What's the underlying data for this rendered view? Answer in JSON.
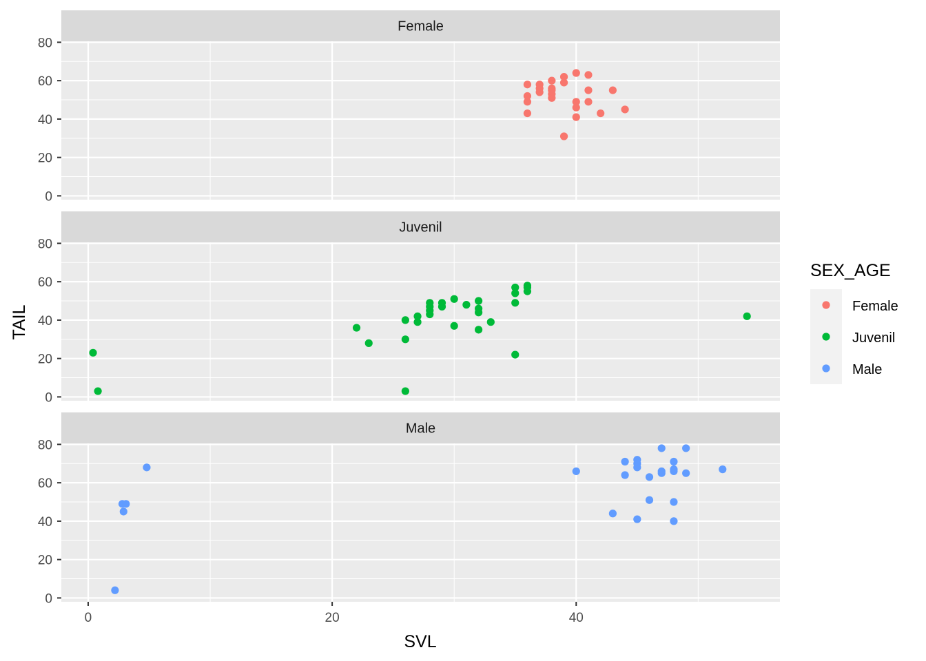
{
  "chart_data": {
    "type": "scatter",
    "facet_by": "SEX_AGE",
    "xlabel": "SVL",
    "ylabel": "TAIL",
    "xlim": [
      -2.2,
      56.7
    ],
    "ylim": [
      -2,
      80.5
    ],
    "x_ticks": [
      0,
      20,
      40
    ],
    "y_ticks": [
      0,
      20,
      40,
      60,
      80
    ],
    "grid": true,
    "legend": {
      "title": "SEX_AGE",
      "placement": "right"
    },
    "series": [
      {
        "name": "Female",
        "color": "#F8766D",
        "points": [
          [
            36,
            58
          ],
          [
            36,
            52
          ],
          [
            36,
            49
          ],
          [
            36,
            43
          ],
          [
            37,
            58
          ],
          [
            37,
            56
          ],
          [
            37,
            54
          ],
          [
            38,
            60
          ],
          [
            38,
            56
          ],
          [
            38,
            55
          ],
          [
            38,
            53
          ],
          [
            38,
            51
          ],
          [
            39,
            62
          ],
          [
            39,
            59
          ],
          [
            39,
            31
          ],
          [
            40,
            64
          ],
          [
            40,
            49
          ],
          [
            40,
            46
          ],
          [
            40,
            41
          ],
          [
            41,
            63
          ],
          [
            41,
            55
          ],
          [
            41,
            49
          ],
          [
            42,
            43
          ],
          [
            43,
            55
          ],
          [
            44,
            45
          ]
        ]
      },
      {
        "name": "Juvenil",
        "color": "#00BA38",
        "points": [
          [
            0.4,
            23
          ],
          [
            0.8,
            3
          ],
          [
            22,
            36
          ],
          [
            23,
            28
          ],
          [
            26,
            40
          ],
          [
            26,
            30
          ],
          [
            26,
            3
          ],
          [
            27,
            42
          ],
          [
            27,
            39
          ],
          [
            28,
            49
          ],
          [
            28,
            47
          ],
          [
            28,
            45
          ],
          [
            28,
            43
          ],
          [
            29,
            49
          ],
          [
            29,
            47
          ],
          [
            30,
            51
          ],
          [
            30,
            37
          ],
          [
            31,
            48
          ],
          [
            32,
            50
          ],
          [
            32,
            46
          ],
          [
            32,
            44
          ],
          [
            32,
            35
          ],
          [
            33,
            39
          ],
          [
            35,
            57
          ],
          [
            35,
            54
          ],
          [
            35,
            49
          ],
          [
            35,
            22
          ],
          [
            36,
            58
          ],
          [
            36,
            57
          ],
          [
            36,
            55
          ],
          [
            54,
            42
          ]
        ]
      },
      {
        "name": "Male",
        "color": "#619CFF",
        "points": [
          [
            2.2,
            4
          ],
          [
            2.8,
            49
          ],
          [
            2.9,
            45
          ],
          [
            3.1,
            49
          ],
          [
            4.8,
            68
          ],
          [
            40,
            66
          ],
          [
            43,
            44
          ],
          [
            44,
            71
          ],
          [
            44,
            64
          ],
          [
            45,
            72
          ],
          [
            45,
            70
          ],
          [
            45,
            68
          ],
          [
            45,
            41
          ],
          [
            46,
            63
          ],
          [
            46,
            51
          ],
          [
            47,
            78
          ],
          [
            47,
            66
          ],
          [
            47,
            65
          ],
          [
            48,
            71
          ],
          [
            48,
            67
          ],
          [
            48,
            66
          ],
          [
            48,
            50
          ],
          [
            48,
            40
          ],
          [
            49,
            78
          ],
          [
            49,
            65
          ],
          [
            52,
            67
          ]
        ]
      }
    ]
  }
}
